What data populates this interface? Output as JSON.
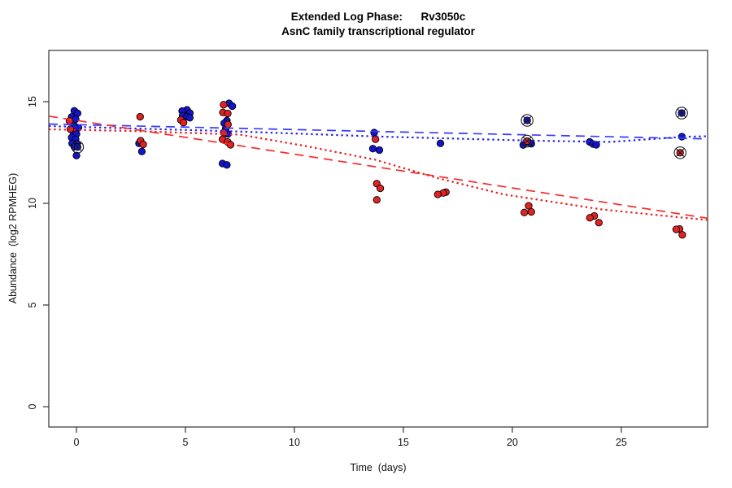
{
  "chart_data": {
    "type": "scatter",
    "title": "Extended Log Phase:      Rv3050c",
    "subtitle": "AsnC family transcriptional regulator",
    "xlabel": "Time  (days)",
    "ylabel": "Abundance  (log2 RPMHEG)",
    "xlim": [
      -1.27,
      28.96
    ],
    "ylim": [
      -1.0,
      17.52
    ],
    "x_ticks": [
      0,
      5,
      10,
      15,
      20,
      25
    ],
    "y_ticks": [
      0,
      5,
      10,
      15
    ],
    "grid": false,
    "legend": "none",
    "frame_color": "#333333",
    "tick_text_color": "#111111",
    "timepoints_days": [
      0,
      3,
      5,
      7,
      14,
      17,
      21,
      24,
      28
    ],
    "series": [
      {
        "name": "blue-condition",
        "marker_color": "#1414CE",
        "points": [
          [
            -0.1,
            14.55
          ],
          [
            0.05,
            14.43
          ],
          [
            -0.22,
            14.25
          ],
          [
            -0.04,
            14.14
          ],
          [
            -0.1,
            13.81
          ],
          [
            0.09,
            13.72
          ],
          [
            -0.16,
            13.54
          ],
          [
            0.0,
            13.41
          ],
          [
            -0.22,
            13.24
          ],
          [
            -0.04,
            13.15
          ],
          [
            -0.2,
            12.95
          ],
          [
            0.02,
            12.92
          ],
          [
            -0.1,
            12.79
          ],
          [
            0.05,
            12.77,
            1
          ],
          [
            0.0,
            12.35
          ],
          [
            2.87,
            12.95
          ],
          [
            3.0,
            12.55
          ],
          [
            5.07,
            14.6
          ],
          [
            4.85,
            14.54
          ],
          [
            5.2,
            14.44
          ],
          [
            4.87,
            14.31
          ],
          [
            5.07,
            14.27
          ],
          [
            5.2,
            14.21
          ],
          [
            7.0,
            14.92
          ],
          [
            7.15,
            14.78
          ],
          [
            6.9,
            14.07
          ],
          [
            6.78,
            13.94
          ],
          [
            6.85,
            13.68
          ],
          [
            6.95,
            13.41
          ],
          [
            6.7,
            11.96
          ],
          [
            6.9,
            11.89
          ],
          [
            13.66,
            13.48
          ],
          [
            13.6,
            12.69
          ],
          [
            13.9,
            12.62
          ],
          [
            16.7,
            12.95
          ],
          [
            20.68,
            14.08,
            1
          ],
          [
            20.75,
            13.0
          ],
          [
            20.87,
            12.93
          ],
          [
            20.5,
            12.87
          ],
          [
            23.55,
            13.02
          ],
          [
            23.7,
            12.92
          ],
          [
            23.85,
            12.88
          ],
          [
            27.77,
            14.44,
            1
          ],
          [
            27.78,
            13.28
          ]
        ]
      },
      {
        "name": "red-condition",
        "marker_color": "#E32222",
        "points": [
          [
            -0.32,
            14.05
          ],
          [
            -0.28,
            13.65
          ],
          [
            2.92,
            14.26
          ],
          [
            2.94,
            13.08
          ],
          [
            3.06,
            12.9
          ],
          [
            4.79,
            14.1
          ],
          [
            4.91,
            13.97
          ],
          [
            6.75,
            14.85
          ],
          [
            6.72,
            14.47
          ],
          [
            6.94,
            14.42
          ],
          [
            6.95,
            13.88
          ],
          [
            6.76,
            13.48
          ],
          [
            6.7,
            13.15
          ],
          [
            6.94,
            13.02
          ],
          [
            7.07,
            12.88
          ],
          [
            13.72,
            13.15
          ],
          [
            13.78,
            10.97
          ],
          [
            13.94,
            10.74
          ],
          [
            13.78,
            10.17
          ],
          [
            16.95,
            10.55
          ],
          [
            16.83,
            10.51
          ],
          [
            16.58,
            10.44
          ],
          [
            20.68,
            13.06,
            1
          ],
          [
            20.75,
            9.88
          ],
          [
            20.87,
            9.58
          ],
          [
            20.55,
            9.55
          ],
          [
            23.76,
            9.38
          ],
          [
            23.56,
            9.29
          ],
          [
            23.97,
            9.05
          ],
          [
            27.7,
            12.49,
            1
          ],
          [
            27.67,
            8.74
          ],
          [
            27.52,
            8.72
          ],
          [
            27.8,
            8.45
          ]
        ]
      }
    ],
    "trend_lines": [
      {
        "name": "blue-dashed-fit",
        "color": "#3939FF",
        "style": "dashed",
        "points": [
          [
            -1.27,
            13.9
          ],
          [
            28.96,
            13.17
          ]
        ]
      },
      {
        "name": "blue-dotted-fit",
        "color": "#2525EB",
        "style": "dotted",
        "points": [
          [
            -1.27,
            13.8
          ],
          [
            7.0,
            13.55
          ],
          [
            14.0,
            13.28
          ],
          [
            21.0,
            13.08
          ],
          [
            24.5,
            13.02
          ],
          [
            27.8,
            13.27
          ],
          [
            28.96,
            13.3
          ]
        ]
      },
      {
        "name": "red-dashed-fit",
        "color": "#F52B2B",
        "style": "dashed",
        "points": [
          [
            -1.27,
            14.29
          ],
          [
            28.96,
            9.27
          ]
        ]
      },
      {
        "name": "red-dotted-fit",
        "color": "#E81E1E",
        "style": "dotted",
        "points": [
          [
            -1.27,
            13.64
          ],
          [
            2.5,
            13.56
          ],
          [
            7.5,
            13.38
          ],
          [
            10.5,
            12.82
          ],
          [
            13.7,
            12.15
          ],
          [
            16.6,
            11.23
          ],
          [
            19.6,
            10.44
          ],
          [
            24.1,
            9.7
          ],
          [
            27.8,
            9.3
          ],
          [
            28.96,
            9.18
          ]
        ]
      }
    ],
    "circled_marker_color": "#1A1A1A"
  }
}
